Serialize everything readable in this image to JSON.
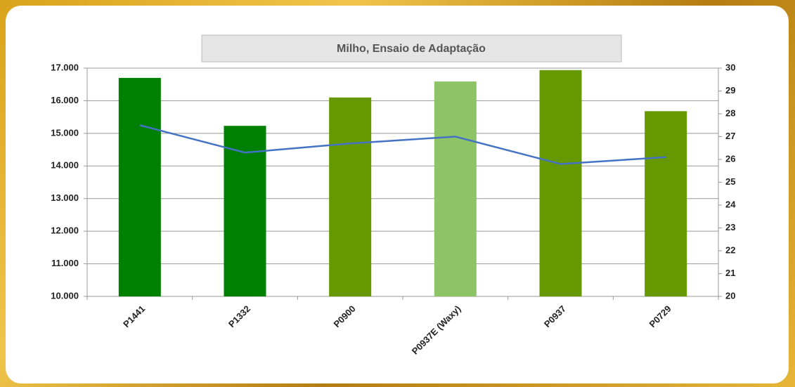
{
  "chart_data": {
    "type": "bar",
    "title": "Milho, Ensaio  de Adaptação",
    "categories": [
      "P1441",
      "P1332",
      "P0900",
      "P0937E (Waxy)",
      "P0937",
      "P0729"
    ],
    "series": [
      {
        "type": "bar",
        "colors": [
          "#008000",
          "#008000",
          "#669900",
          "#8cc466",
          "#669900",
          "#669900"
        ],
        "values": [
          16700,
          15230,
          16100,
          16590,
          16940,
          15680
        ]
      },
      {
        "type": "line",
        "color": "#4472c4",
        "axis": "y2",
        "values": [
          27.5,
          26.3,
          26.7,
          27.0,
          25.8,
          26.1
        ]
      }
    ],
    "ylim": [
      10000,
      17000
    ],
    "yticks": [
      {
        "value": 10000,
        "label": "10.000"
      },
      {
        "value": 11000,
        "label": "11.000"
      },
      {
        "value": 12000,
        "label": "12.000"
      },
      {
        "value": 13000,
        "label": "13.000"
      },
      {
        "value": 14000,
        "label": "14.000"
      },
      {
        "value": 15000,
        "label": "15.000"
      },
      {
        "value": 16000,
        "label": "16.000"
      },
      {
        "value": 17000,
        "label": "17.000"
      }
    ],
    "y2lim": [
      20,
      30
    ],
    "y2ticks": [
      20,
      21,
      22,
      23,
      24,
      25,
      26,
      27,
      28,
      29,
      30
    ],
    "grid": true
  }
}
